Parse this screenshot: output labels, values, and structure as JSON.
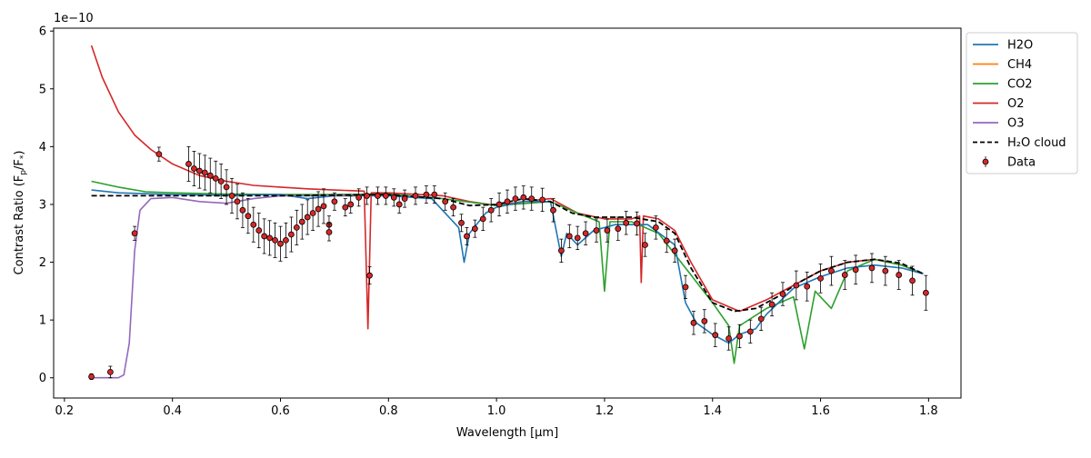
{
  "chart_data": {
    "type": "line",
    "title": "",
    "xlabel": "Wavelength [μm]",
    "ylabel": "Contrast Ratio (F_p/F_*)",
    "y_offset_label": "1e−10",
    "xlim": [
      0.18,
      1.86
    ],
    "ylim": [
      -0.35,
      6.05
    ],
    "x_ticks": [
      0.2,
      0.4,
      0.6,
      0.8,
      1.0,
      1.2,
      1.4,
      1.6,
      1.8
    ],
    "x_tick_labels": [
      "0.2",
      "0.4",
      "0.6",
      "0.8",
      "1.0",
      "1.2",
      "1.4",
      "1.6",
      "1.8"
    ],
    "y_ticks": [
      0,
      1,
      2,
      3,
      4,
      5,
      6
    ],
    "y_tick_labels": [
      "0",
      "1",
      "2",
      "3",
      "4",
      "5",
      "6"
    ],
    "grid": false,
    "legend_position": "outside-right",
    "legend": [
      {
        "label": "H2O",
        "color": "#1f77b4",
        "style": "line"
      },
      {
        "label": "CH4",
        "color": "#ff7f0e",
        "style": "line"
      },
      {
        "label": "CO2",
        "color": "#2ca02c",
        "style": "line"
      },
      {
        "label": "O2",
        "color": "#d62728",
        "style": "line"
      },
      {
        "label": "O3",
        "color": "#9467bd",
        "style": "line"
      },
      {
        "label": "H₂O cloud",
        "color": "#000000",
        "style": "dashed"
      },
      {
        "label": "Data",
        "color": "#d62728",
        "style": "errorbar-marker"
      }
    ],
    "series": [
      {
        "name": "O2",
        "color": "#d62728",
        "points": [
          [
            0.25,
            5.75
          ],
          [
            0.27,
            5.2
          ],
          [
            0.3,
            4.6
          ],
          [
            0.33,
            4.2
          ],
          [
            0.36,
            3.95
          ],
          [
            0.4,
            3.7
          ],
          [
            0.45,
            3.5
          ],
          [
            0.5,
            3.4
          ],
          [
            0.55,
            3.33
          ],
          [
            0.6,
            3.3
          ],
          [
            0.65,
            3.27
          ],
          [
            0.7,
            3.25
          ],
          [
            0.755,
            3.23
          ],
          [
            0.762,
            0.85
          ],
          [
            0.768,
            3.2
          ],
          [
            0.8,
            3.2
          ],
          [
            0.9,
            3.15
          ],
          [
            0.95,
            3.05
          ],
          [
            1.0,
            2.98
          ],
          [
            1.05,
            3.05
          ],
          [
            1.1,
            3.1
          ],
          [
            1.15,
            2.85
          ],
          [
            1.2,
            2.75
          ],
          [
            1.25,
            2.75
          ],
          [
            1.265,
            2.8
          ],
          [
            1.268,
            1.65
          ],
          [
            1.272,
            2.8
          ],
          [
            1.3,
            2.75
          ],
          [
            1.33,
            2.55
          ],
          [
            1.36,
            2.0
          ],
          [
            1.4,
            1.35
          ],
          [
            1.45,
            1.15
          ],
          [
            1.5,
            1.35
          ],
          [
            1.55,
            1.6
          ],
          [
            1.6,
            1.85
          ],
          [
            1.65,
            2.0
          ],
          [
            1.7,
            2.05
          ],
          [
            1.75,
            1.95
          ],
          [
            1.79,
            1.8
          ]
        ]
      },
      {
        "name": "CO2",
        "color": "#2ca02c",
        "points": [
          [
            0.25,
            3.4
          ],
          [
            0.3,
            3.3
          ],
          [
            0.35,
            3.22
          ],
          [
            0.4,
            3.2
          ],
          [
            0.5,
            3.18
          ],
          [
            0.6,
            3.17
          ],
          [
            0.7,
            3.17
          ],
          [
            0.8,
            3.18
          ],
          [
            0.9,
            3.1
          ],
          [
            1.0,
            2.98
          ],
          [
            1.1,
            3.05
          ],
          [
            1.15,
            2.85
          ],
          [
            1.19,
            2.7
          ],
          [
            1.2,
            1.5
          ],
          [
            1.21,
            2.7
          ],
          [
            1.25,
            2.7
          ],
          [
            1.3,
            2.5
          ],
          [
            1.35,
            1.9
          ],
          [
            1.4,
            1.3
          ],
          [
            1.43,
            0.9
          ],
          [
            1.44,
            0.25
          ],
          [
            1.45,
            0.9
          ],
          [
            1.5,
            1.2
          ],
          [
            1.55,
            1.4
          ],
          [
            1.57,
            0.5
          ],
          [
            1.59,
            1.5
          ],
          [
            1.62,
            1.2
          ],
          [
            1.65,
            1.85
          ],
          [
            1.7,
            2.05
          ],
          [
            1.75,
            1.95
          ],
          [
            1.79,
            1.8
          ]
        ]
      },
      {
        "name": "H2O",
        "color": "#1f77b4",
        "points": [
          [
            0.25,
            3.25
          ],
          [
            0.3,
            3.2
          ],
          [
            0.4,
            3.17
          ],
          [
            0.5,
            3.16
          ],
          [
            0.6,
            3.17
          ],
          [
            0.65,
            3.1
          ],
          [
            0.7,
            3.15
          ],
          [
            0.8,
            3.15
          ],
          [
            0.88,
            3.1
          ],
          [
            0.93,
            2.6
          ],
          [
            0.94,
            2.0
          ],
          [
            0.95,
            2.5
          ],
          [
            0.98,
            2.85
          ],
          [
            1.0,
            2.95
          ],
          [
            1.05,
            3.05
          ],
          [
            1.1,
            3.05
          ],
          [
            1.12,
            2.1
          ],
          [
            1.13,
            2.5
          ],
          [
            1.15,
            2.3
          ],
          [
            1.18,
            2.55
          ],
          [
            1.22,
            2.65
          ],
          [
            1.28,
            2.65
          ],
          [
            1.33,
            2.3
          ],
          [
            1.35,
            1.3
          ],
          [
            1.37,
            0.95
          ],
          [
            1.4,
            0.75
          ],
          [
            1.43,
            0.6
          ],
          [
            1.45,
            0.75
          ],
          [
            1.48,
            0.85
          ],
          [
            1.5,
            1.1
          ],
          [
            1.55,
            1.55
          ],
          [
            1.6,
            1.75
          ],
          [
            1.65,
            1.9
          ],
          [
            1.7,
            1.95
          ],
          [
            1.75,
            1.9
          ],
          [
            1.79,
            1.8
          ]
        ]
      },
      {
        "name": "O3",
        "color": "#9467bd",
        "points": [
          [
            0.25,
            0.0
          ],
          [
            0.28,
            0.0
          ],
          [
            0.3,
            0.0
          ],
          [
            0.31,
            0.05
          ],
          [
            0.32,
            0.6
          ],
          [
            0.33,
            2.2
          ],
          [
            0.34,
            2.9
          ],
          [
            0.36,
            3.1
          ],
          [
            0.4,
            3.12
          ],
          [
            0.45,
            3.05
          ],
          [
            0.5,
            3.02
          ],
          [
            0.55,
            3.1
          ],
          [
            0.6,
            3.15
          ],
          [
            0.7,
            3.15
          ],
          [
            0.8,
            3.15
          ]
        ]
      },
      {
        "name": "H₂O cloud",
        "color": "#000000",
        "dashed": true,
        "points": [
          [
            0.25,
            3.15
          ],
          [
            0.4,
            3.15
          ],
          [
            0.6,
            3.15
          ],
          [
            0.8,
            3.17
          ],
          [
            0.9,
            3.1
          ],
          [
            0.95,
            2.98
          ],
          [
            1.0,
            3.0
          ],
          [
            1.05,
            3.1
          ],
          [
            1.1,
            3.05
          ],
          [
            1.14,
            2.85
          ],
          [
            1.18,
            2.78
          ],
          [
            1.25,
            2.78
          ],
          [
            1.3,
            2.7
          ],
          [
            1.33,
            2.5
          ],
          [
            1.36,
            1.9
          ],
          [
            1.4,
            1.3
          ],
          [
            1.44,
            1.15
          ],
          [
            1.48,
            1.2
          ],
          [
            1.52,
            1.4
          ],
          [
            1.56,
            1.65
          ],
          [
            1.6,
            1.85
          ],
          [
            1.65,
            2.0
          ],
          [
            1.7,
            2.05
          ],
          [
            1.75,
            1.98
          ],
          [
            1.79,
            1.8
          ]
        ]
      }
    ],
    "data_points": {
      "name": "Data",
      "x": [
        0.25,
        0.285,
        0.33,
        0.375,
        0.43,
        0.44,
        0.45,
        0.46,
        0.47,
        0.48,
        0.49,
        0.5,
        0.51,
        0.52,
        0.53,
        0.54,
        0.55,
        0.56,
        0.57,
        0.58,
        0.59,
        0.6,
        0.61,
        0.62,
        0.63,
        0.64,
        0.65,
        0.66,
        0.67,
        0.68,
        0.69,
        0.69,
        0.7,
        0.72,
        0.73,
        0.745,
        0.76,
        0.765,
        0.78,
        0.795,
        0.81,
        0.82,
        0.83,
        0.85,
        0.87,
        0.885,
        0.905,
        0.92,
        0.935,
        0.945,
        0.96,
        0.975,
        0.99,
        1.005,
        1.02,
        1.035,
        1.05,
        1.065,
        1.085,
        1.105,
        1.12,
        1.135,
        1.15,
        1.165,
        1.185,
        1.205,
        1.225,
        1.24,
        1.26,
        1.275,
        1.295,
        1.315,
        1.33,
        1.35,
        1.365,
        1.385,
        1.405,
        1.43,
        1.45,
        1.47,
        1.49,
        1.51,
        1.53,
        1.555,
        1.575,
        1.6,
        1.62,
        1.645,
        1.665,
        1.695,
        1.72,
        1.745,
        1.77,
        1.795
      ],
      "y": [
        0.02,
        0.1,
        2.5,
        3.87,
        3.7,
        3.62,
        3.58,
        3.55,
        3.5,
        3.45,
        3.4,
        3.3,
        3.15,
        3.05,
        2.9,
        2.8,
        2.65,
        2.55,
        2.45,
        2.42,
        2.38,
        2.32,
        2.38,
        2.48,
        2.6,
        2.7,
        2.78,
        2.85,
        2.92,
        2.97,
        2.65,
        2.52,
        3.05,
        2.95,
        3.0,
        3.12,
        3.15,
        1.77,
        3.15,
        3.15,
        3.12,
        3.0,
        3.1,
        3.15,
        3.17,
        3.17,
        3.05,
        2.95,
        2.68,
        2.45,
        2.58,
        2.75,
        2.9,
        3.0,
        3.05,
        3.1,
        3.12,
        3.1,
        3.08,
        2.9,
        2.2,
        2.45,
        2.42,
        2.5,
        2.55,
        2.55,
        2.58,
        2.68,
        2.67,
        2.3,
        2.6,
        2.37,
        2.2,
        1.57,
        0.95,
        0.98,
        0.74,
        0.68,
        0.72,
        0.8,
        1.02,
        1.27,
        1.45,
        1.6,
        1.58,
        1.72,
        1.85,
        1.78,
        1.87,
        1.9,
        1.85,
        1.78,
        1.68,
        1.47
      ],
      "yerr": [
        0.05,
        0.1,
        0.12,
        0.12,
        0.3,
        0.3,
        0.3,
        0.3,
        0.3,
        0.3,
        0.3,
        0.3,
        0.3,
        0.3,
        0.3,
        0.3,
        0.3,
        0.3,
        0.3,
        0.3,
        0.3,
        0.3,
        0.3,
        0.3,
        0.3,
        0.3,
        0.3,
        0.3,
        0.3,
        0.3,
        0.15,
        0.15,
        0.15,
        0.15,
        0.15,
        0.15,
        0.15,
        0.15,
        0.15,
        0.15,
        0.15,
        0.15,
        0.15,
        0.15,
        0.15,
        0.15,
        0.15,
        0.15,
        0.15,
        0.15,
        0.15,
        0.2,
        0.2,
        0.2,
        0.2,
        0.2,
        0.2,
        0.2,
        0.2,
        0.2,
        0.2,
        0.2,
        0.2,
        0.2,
        0.2,
        0.2,
        0.2,
        0.2,
        0.2,
        0.2,
        0.2,
        0.2,
        0.2,
        0.2,
        0.2,
        0.2,
        0.2,
        0.2,
        0.2,
        0.2,
        0.2,
        0.2,
        0.2,
        0.25,
        0.25,
        0.25,
        0.25,
        0.25,
        0.25,
        0.25,
        0.25,
        0.25,
        0.25,
        0.3
      ]
    }
  }
}
